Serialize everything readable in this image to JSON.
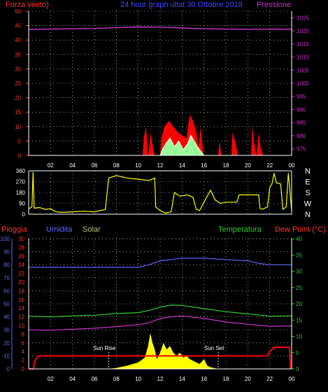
{
  "header": {
    "left": "Forza vento)",
    "center": "24 hour graph ultat   30 Ottobre 2018",
    "right": "Pressione"
  },
  "colors": {
    "background": "#000000",
    "wind": "#ff0000",
    "gust": "#ff0000",
    "pressure": "#cc33cc",
    "wind_dir": "#ffff00",
    "rain": "#ff0000",
    "humidity": "#6666ff",
    "solar": "#ffff00",
    "temperature": "#33cc33",
    "dewpoint": "#cc33cc",
    "axis": "#ffffff",
    "grid": "#ffffff"
  },
  "chart_data": [
    {
      "type": "line",
      "name": "wind-pressure",
      "x_ticks": [
        "02",
        "04",
        "06",
        "08",
        "10",
        "12",
        "14",
        "16",
        "18",
        "20",
        "22",
        "00"
      ],
      "y_left_ticks": [
        0,
        5,
        10,
        15,
        20,
        25,
        30,
        35,
        40,
        45,
        50
      ],
      "y_left_range": [
        0,
        50
      ],
      "y_right_ticks": [
        975,
        980,
        985,
        990,
        995,
        1000,
        1005,
        1010,
        1015,
        1020,
        1025
      ],
      "y_right_range": [
        972.5,
        1027.5
      ],
      "grid": true,
      "series": [
        {
          "role": "wind_gust",
          "axis": "left",
          "points": [
            [
              0,
              0
            ],
            [
              10.4,
              0
            ],
            [
              10.5,
              6
            ],
            [
              10.7,
              10
            ],
            [
              10.9,
              0
            ],
            [
              11.0,
              2
            ],
            [
              11.1,
              8
            ],
            [
              11.3,
              4
            ],
            [
              11.5,
              0
            ],
            [
              12.0,
              0
            ],
            [
              12.1,
              6
            ],
            [
              12.4,
              10
            ],
            [
              12.8,
              12
            ],
            [
              13.2,
              10
            ],
            [
              13.6,
              8
            ],
            [
              14.0,
              7
            ],
            [
              14.4,
              6
            ],
            [
              14.7,
              14
            ],
            [
              15.0,
              12
            ],
            [
              15.3,
              8
            ],
            [
              15.5,
              3
            ],
            [
              15.7,
              10
            ],
            [
              15.9,
              2
            ],
            [
              16.0,
              0
            ],
            [
              17.3,
              0
            ],
            [
              17.4,
              5
            ],
            [
              17.6,
              0
            ],
            [
              18.5,
              0
            ],
            [
              18.6,
              8
            ],
            [
              18.9,
              4
            ],
            [
              19.1,
              0
            ],
            [
              20.3,
              0
            ],
            [
              20.4,
              10
            ],
            [
              20.6,
              4
            ],
            [
              20.8,
              0
            ],
            [
              21.0,
              8
            ],
            [
              21.2,
              2
            ],
            [
              21.4,
              0
            ],
            [
              24,
              0
            ]
          ]
        },
        {
          "role": "wind_speed",
          "axis": "left",
          "points": [
            [
              0,
              0
            ],
            [
              12.0,
              0
            ],
            [
              12.2,
              2
            ],
            [
              12.5,
              4
            ],
            [
              12.9,
              6
            ],
            [
              13.3,
              3
            ],
            [
              13.7,
              5
            ],
            [
              14.1,
              2
            ],
            [
              14.5,
              4
            ],
            [
              14.8,
              7
            ],
            [
              15.1,
              5
            ],
            [
              15.4,
              3
            ],
            [
              15.8,
              1
            ],
            [
              16.0,
              0
            ],
            [
              24,
              0
            ]
          ]
        },
        {
          "role": "pressure",
          "axis": "right",
          "points": [
            [
              0,
              1020.5
            ],
            [
              2,
              1020.7
            ],
            [
              4,
              1020.8
            ],
            [
              6,
              1020.9
            ],
            [
              8,
              1021.2
            ],
            [
              10,
              1021.5
            ],
            [
              12,
              1021.4
            ],
            [
              14,
              1021.1
            ],
            [
              16,
              1020.8
            ],
            [
              18,
              1020.7
            ],
            [
              20,
              1020.6
            ],
            [
              22,
              1020.7
            ],
            [
              24,
              1020.6
            ]
          ]
        }
      ]
    },
    {
      "type": "line",
      "name": "wind-direction",
      "x_ticks": [
        "02",
        "04",
        "06",
        "08",
        "10",
        "12",
        "14",
        "16",
        "18",
        "20",
        "22",
        "00"
      ],
      "y_left_ticks": [
        0,
        90,
        180,
        270,
        360
      ],
      "y_left_range": [
        0,
        360
      ],
      "y_right_labels": [
        "N",
        "W",
        "S",
        "E",
        "N"
      ],
      "grid": true,
      "series": [
        {
          "role": "direction",
          "points": [
            [
              0,
              45
            ],
            [
              0.3,
              60
            ],
            [
              0.4,
              350
            ],
            [
              0.5,
              50
            ],
            [
              1.0,
              55
            ],
            [
              1.5,
              40
            ],
            [
              2.0,
              45
            ],
            [
              2.5,
              20
            ],
            [
              3.0,
              15
            ],
            [
              4.0,
              20
            ],
            [
              5.0,
              25
            ],
            [
              6.0,
              20
            ],
            [
              7.0,
              40
            ],
            [
              7.3,
              300
            ],
            [
              8.0,
              320
            ],
            [
              9.0,
              300
            ],
            [
              10.0,
              290
            ],
            [
              11.0,
              280
            ],
            [
              11.5,
              300
            ],
            [
              11.6,
              60
            ],
            [
              12.0,
              30
            ],
            [
              12.5,
              10
            ],
            [
              13.0,
              20
            ],
            [
              13.3,
              180
            ],
            [
              13.8,
              150
            ],
            [
              14.5,
              160
            ],
            [
              15.0,
              140
            ],
            [
              15.3,
              40
            ],
            [
              15.6,
              30
            ],
            [
              16.0,
              100
            ],
            [
              16.6,
              200
            ],
            [
              17.0,
              120
            ],
            [
              17.5,
              90
            ],
            [
              18.0,
              100
            ],
            [
              19.0,
              100
            ],
            [
              19.2,
              160
            ],
            [
              20.0,
              160
            ],
            [
              21.0,
              160
            ],
            [
              21.1,
              50
            ],
            [
              21.3,
              40
            ],
            [
              21.8,
              60
            ],
            [
              22.0,
              220
            ],
            [
              22.2,
              250
            ],
            [
              22.4,
              340
            ],
            [
              22.6,
              260
            ],
            [
              23.0,
              250
            ],
            [
              23.2,
              40
            ],
            [
              23.5,
              60
            ],
            [
              23.7,
              340
            ],
            [
              24.0,
              30
            ]
          ]
        }
      ]
    },
    {
      "type": "line",
      "name": "rain-humidity-solar-temp-dew",
      "x_ticks": [
        "02",
        "04",
        "06",
        "08",
        "10",
        "12",
        "14",
        "16",
        "18",
        "20",
        "22",
        "00"
      ],
      "legend": [
        "Pioggia",
        "Umidita",
        "Solar",
        "Temperatura",
        "Dew Point (°C)"
      ],
      "rain_ticks": [
        0,
        2,
        4,
        6,
        8,
        10,
        12,
        14,
        16,
        18,
        20,
        22,
        24,
        26,
        28,
        30
      ],
      "rain_range": [
        0,
        30
      ],
      "humidity_ticks": [
        0,
        10,
        20,
        30,
        40,
        50,
        60,
        70,
        80,
        90,
        100
      ],
      "humidity_range": [
        0,
        100
      ],
      "temp_ticks": [
        0,
        5,
        10,
        15,
        20,
        25,
        30,
        35,
        40
      ],
      "temp_range": [
        0,
        40
      ],
      "annotations": [
        "Sun Rise",
        "Sun Set"
      ],
      "grid": true,
      "series": [
        {
          "role": "humidity",
          "axis": "humidity",
          "points": [
            [
              0,
              78
            ],
            [
              4,
              78
            ],
            [
              8,
              78
            ],
            [
              10,
              78
            ],
            [
              11,
              80
            ],
            [
              12,
              83
            ],
            [
              13,
              84
            ],
            [
              14,
              85
            ],
            [
              16,
              85
            ],
            [
              18,
              84
            ],
            [
              20,
              83
            ],
            [
              21,
              81
            ],
            [
              22,
              80
            ],
            [
              24,
              80
            ]
          ]
        },
        {
          "role": "temperature",
          "axis": "temp",
          "points": [
            [
              0,
              16.2
            ],
            [
              2,
              16.0
            ],
            [
              4,
              16.3
            ],
            [
              6,
              16.5
            ],
            [
              8,
              17.0
            ],
            [
              10,
              17.3
            ],
            [
              11,
              18.0
            ],
            [
              12,
              19.0
            ],
            [
              13,
              19.6
            ],
            [
              14,
              19.5
            ],
            [
              15,
              19.0
            ],
            [
              16,
              18.5
            ],
            [
              18,
              17.6
            ],
            [
              20,
              16.9
            ],
            [
              22,
              16.2
            ],
            [
              24,
              16.3
            ]
          ]
        },
        {
          "role": "dewpoint",
          "axis": "temp",
          "points": [
            [
              0,
              12.0
            ],
            [
              2,
              11.9
            ],
            [
              4,
              12.2
            ],
            [
              6,
              12.5
            ],
            [
              8,
              13.0
            ],
            [
              10,
              13.6
            ],
            [
              11,
              14.2
            ],
            [
              12,
              15.5
            ],
            [
              13,
              16.0
            ],
            [
              14,
              16.3
            ],
            [
              15,
              15.9
            ],
            [
              16,
              15.5
            ],
            [
              18,
              14.4
            ],
            [
              20,
              13.7
            ],
            [
              22,
              13.1
            ],
            [
              24,
              13.2
            ]
          ]
        },
        {
          "role": "solar",
          "axis": "temp",
          "points": [
            [
              0,
              0
            ],
            [
              7.3,
              0
            ],
            [
              8.0,
              0.3
            ],
            [
              9.0,
              1.0
            ],
            [
              10.0,
              2.0
            ],
            [
              10.6,
              3.5
            ],
            [
              10.9,
              7
            ],
            [
              11.1,
              11
            ],
            [
              11.3,
              8
            ],
            [
              11.5,
              6
            ],
            [
              11.7,
              3
            ],
            [
              12.0,
              5
            ],
            [
              12.3,
              8
            ],
            [
              12.6,
              6
            ],
            [
              12.9,
              7
            ],
            [
              13.2,
              5
            ],
            [
              13.5,
              4
            ],
            [
              13.8,
              5
            ],
            [
              14.1,
              3.5
            ],
            [
              14.4,
              4
            ],
            [
              14.7,
              3
            ],
            [
              15.0,
              2.5
            ],
            [
              15.3,
              2
            ],
            [
              15.6,
              1.5
            ],
            [
              16.0,
              3
            ],
            [
              16.3,
              1
            ],
            [
              16.6,
              0.5
            ],
            [
              17.3,
              0
            ],
            [
              24,
              0
            ]
          ]
        },
        {
          "role": "rain",
          "axis": "rain",
          "points": [
            [
              0,
              0
            ],
            [
              0.4,
              0
            ],
            [
              0.6,
              2
            ],
            [
              0.9,
              3
            ],
            [
              8,
              3
            ],
            [
              12,
              3
            ],
            [
              16,
              3
            ],
            [
              20,
              3
            ],
            [
              21.8,
              3
            ],
            [
              22.0,
              4
            ],
            [
              22.4,
              5
            ],
            [
              23.8,
              5
            ],
            [
              23.9,
              0
            ]
          ]
        }
      ]
    }
  ],
  "panel3_labels": {
    "pioggia": "Pioggia",
    "umidita": "Umidita",
    "solar": "Solar",
    "temperatura": "Temperatura",
    "dewpoint": "Dew Point (°C)",
    "sunrise": "Sun Rise",
    "sunset": "Sun Set"
  }
}
